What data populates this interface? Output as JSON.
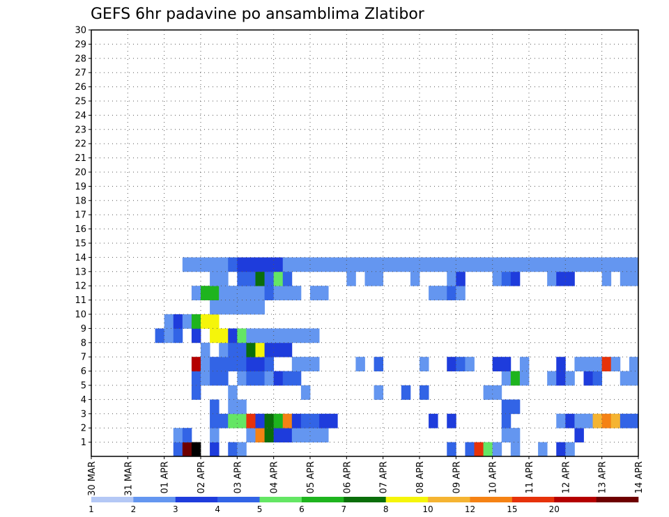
{
  "chart_data": {
    "type": "heatmap",
    "title": "GEFS 6hr padavine po ansamblima Zlatibor",
    "xlabel": "",
    "ylabel": "",
    "y_tick_labels": [
      "1",
      "2",
      "3",
      "4",
      "5",
      "6",
      "7",
      "8",
      "9",
      "10",
      "11",
      "12",
      "13",
      "14",
      "15",
      "16",
      "17",
      "18",
      "19",
      "20",
      "21",
      "22",
      "23",
      "24",
      "25",
      "26",
      "27",
      "28",
      "29",
      "30"
    ],
    "x_tick_labels": [
      "30 MAR",
      "31 MAR",
      "01 APR",
      "02 APR",
      "03 APR",
      "04 APR",
      "05 APR",
      "06 APR",
      "07 APR",
      "08 APR",
      "09 APR",
      "10 APR",
      "11 APR",
      "12 APR",
      "13 APR",
      "14 APR"
    ],
    "x_range_steps_6h": [
      0,
      60
    ],
    "y_range_members": [
      0,
      30
    ],
    "grid": "dotted",
    "colorbar": {
      "labels": [
        "1",
        "2",
        "3",
        "4",
        "5",
        "6",
        "7",
        "8",
        "10",
        "12",
        "15",
        "20"
      ],
      "colors": [
        "#b4c8f5",
        "#6496f0",
        "#1e3cdc",
        "#3264e6",
        "#64e664",
        "#1eb41e",
        "#0a6e0a",
        "#f5f50a",
        "#f5b432",
        "#f58214",
        "#e6320a",
        "#b40000",
        "#6e0000"
      ]
    },
    "cells": [
      [
        9,
        0,
        3
      ],
      [
        10,
        0,
        12
      ],
      [
        11,
        0,
        13
      ],
      [
        13,
        0,
        2
      ],
      [
        15,
        0,
        3
      ],
      [
        16,
        0,
        1
      ],
      [
        39,
        0,
        3
      ],
      [
        41,
        0,
        3
      ],
      [
        42,
        0,
        10
      ],
      [
        43,
        0,
        4
      ],
      [
        44,
        0,
        1
      ],
      [
        46,
        0,
        1
      ],
      [
        49,
        0,
        1
      ],
      [
        51,
        0,
        2
      ],
      [
        52,
        0,
        1
      ],
      [
        9,
        1,
        1
      ],
      [
        10,
        1,
        3
      ],
      [
        13,
        1,
        1
      ],
      [
        17,
        1,
        1
      ],
      [
        18,
        1,
        9
      ],
      [
        19,
        1,
        6
      ],
      [
        20,
        1,
        2
      ],
      [
        21,
        1,
        2
      ],
      [
        22,
        1,
        1
      ],
      [
        23,
        1,
        1
      ],
      [
        24,
        1,
        1
      ],
      [
        25,
        1,
        1
      ],
      [
        45,
        1,
        1
      ],
      [
        46,
        1,
        1
      ],
      [
        53,
        1,
        2
      ],
      [
        13,
        2,
        3
      ],
      [
        14,
        2,
        3
      ],
      [
        15,
        2,
        4
      ],
      [
        16,
        2,
        4
      ],
      [
        17,
        2,
        10
      ],
      [
        18,
        2,
        2
      ],
      [
        19,
        2,
        6
      ],
      [
        20,
        2,
        5
      ],
      [
        21,
        2,
        9
      ],
      [
        22,
        2,
        2
      ],
      [
        23,
        2,
        3
      ],
      [
        24,
        2,
        3
      ],
      [
        25,
        2,
        2
      ],
      [
        26,
        2,
        2
      ],
      [
        37,
        2,
        2
      ],
      [
        39,
        2,
        2
      ],
      [
        45,
        2,
        3
      ],
      [
        51,
        2,
        1
      ],
      [
        52,
        2,
        2
      ],
      [
        53,
        2,
        1
      ],
      [
        54,
        2,
        1
      ],
      [
        55,
        2,
        8
      ],
      [
        56,
        2,
        9
      ],
      [
        57,
        2,
        8
      ],
      [
        58,
        2,
        3
      ],
      [
        59,
        2,
        3
      ],
      [
        13,
        3,
        3
      ],
      [
        15,
        3,
        1
      ],
      [
        16,
        3,
        1
      ],
      [
        45,
        3,
        3
      ],
      [
        46,
        3,
        3
      ],
      [
        11,
        4,
        3
      ],
      [
        15,
        4,
        1
      ],
      [
        23,
        4,
        1
      ],
      [
        31,
        4,
        1
      ],
      [
        34,
        4,
        3
      ],
      [
        36,
        4,
        3
      ],
      [
        43,
        4,
        1
      ],
      [
        44,
        4,
        1
      ],
      [
        11,
        5,
        3
      ],
      [
        12,
        5,
        1
      ],
      [
        13,
        5,
        3
      ],
      [
        14,
        5,
        3
      ],
      [
        16,
        5,
        1
      ],
      [
        17,
        5,
        3
      ],
      [
        18,
        5,
        3
      ],
      [
        19,
        5,
        1
      ],
      [
        20,
        5,
        2
      ],
      [
        21,
        5,
        3
      ],
      [
        22,
        5,
        3
      ],
      [
        45,
        5,
        1
      ],
      [
        46,
        5,
        5
      ],
      [
        47,
        5,
        1
      ],
      [
        50,
        5,
        1
      ],
      [
        51,
        5,
        2
      ],
      [
        52,
        5,
        1
      ],
      [
        54,
        5,
        2
      ],
      [
        55,
        5,
        3
      ],
      [
        58,
        5,
        1
      ],
      [
        59,
        5,
        1
      ],
      [
        11,
        6,
        11
      ],
      [
        12,
        6,
        1
      ],
      [
        13,
        6,
        3
      ],
      [
        14,
        6,
        3
      ],
      [
        15,
        6,
        3
      ],
      [
        16,
        6,
        3
      ],
      [
        17,
        6,
        2
      ],
      [
        18,
        6,
        2
      ],
      [
        19,
        6,
        3
      ],
      [
        22,
        6,
        1
      ],
      [
        23,
        6,
        1
      ],
      [
        24,
        6,
        1
      ],
      [
        29,
        6,
        1
      ],
      [
        31,
        6,
        3
      ],
      [
        36,
        6,
        1
      ],
      [
        39,
        6,
        2
      ],
      [
        40,
        6,
        3
      ],
      [
        41,
        6,
        1
      ],
      [
        44,
        6,
        2
      ],
      [
        45,
        6,
        2
      ],
      [
        47,
        6,
        1
      ],
      [
        51,
        6,
        2
      ],
      [
        53,
        6,
        1
      ],
      [
        54,
        6,
        1
      ],
      [
        55,
        6,
        1
      ],
      [
        56,
        6,
        10
      ],
      [
        57,
        6,
        1
      ],
      [
        59,
        6,
        1
      ],
      [
        12,
        7,
        1
      ],
      [
        14,
        7,
        1
      ],
      [
        15,
        7,
        3
      ],
      [
        16,
        7,
        3
      ],
      [
        17,
        7,
        6
      ],
      [
        18,
        7,
        7
      ],
      [
        19,
        7,
        2
      ],
      [
        20,
        7,
        2
      ],
      [
        21,
        7,
        2
      ],
      [
        7,
        8,
        3
      ],
      [
        8,
        8,
        1
      ],
      [
        9,
        8,
        3
      ],
      [
        11,
        8,
        2
      ],
      [
        13,
        8,
        7
      ],
      [
        14,
        8,
        7
      ],
      [
        15,
        8,
        2
      ],
      [
        16,
        8,
        4
      ],
      [
        17,
        8,
        1
      ],
      [
        18,
        8,
        1
      ],
      [
        19,
        8,
        1
      ],
      [
        20,
        8,
        1
      ],
      [
        21,
        8,
        1
      ],
      [
        22,
        8,
        1
      ],
      [
        23,
        8,
        1
      ],
      [
        24,
        8,
        1
      ],
      [
        8,
        9,
        1
      ],
      [
        9,
        9,
        2
      ],
      [
        10,
        9,
        1
      ],
      [
        11,
        9,
        5
      ],
      [
        12,
        9,
        7
      ],
      [
        13,
        9,
        7
      ],
      [
        13,
        10,
        1
      ],
      [
        14,
        10,
        1
      ],
      [
        15,
        10,
        1
      ],
      [
        16,
        10,
        1
      ],
      [
        17,
        10,
        1
      ],
      [
        18,
        10,
        1
      ],
      [
        11,
        11,
        1
      ],
      [
        12,
        11,
        5
      ],
      [
        13,
        11,
        5
      ],
      [
        14,
        11,
        1
      ],
      [
        15,
        11,
        1
      ],
      [
        16,
        11,
        1
      ],
      [
        17,
        11,
        1
      ],
      [
        18,
        11,
        1
      ],
      [
        19,
        11,
        3
      ],
      [
        20,
        11,
        1
      ],
      [
        21,
        11,
        1
      ],
      [
        22,
        11,
        1
      ],
      [
        24,
        11,
        1
      ],
      [
        25,
        11,
        1
      ],
      [
        37,
        11,
        1
      ],
      [
        38,
        11,
        1
      ],
      [
        39,
        11,
        3
      ],
      [
        40,
        11,
        1
      ],
      [
        13,
        12,
        1
      ],
      [
        14,
        12,
        1
      ],
      [
        16,
        12,
        3
      ],
      [
        17,
        12,
        3
      ],
      [
        18,
        12,
        6
      ],
      [
        19,
        12,
        3
      ],
      [
        20,
        12,
        4
      ],
      [
        21,
        12,
        3
      ],
      [
        28,
        12,
        1
      ],
      [
        30,
        12,
        1
      ],
      [
        31,
        12,
        1
      ],
      [
        35,
        12,
        1
      ],
      [
        39,
        12,
        1
      ],
      [
        40,
        12,
        2
      ],
      [
        44,
        12,
        1
      ],
      [
        45,
        12,
        3
      ],
      [
        46,
        12,
        2
      ],
      [
        50,
        12,
        1
      ],
      [
        51,
        12,
        2
      ],
      [
        52,
        12,
        2
      ],
      [
        56,
        12,
        1
      ],
      [
        58,
        12,
        1
      ],
      [
        59,
        12,
        1
      ],
      [
        10,
        13,
        1
      ],
      [
        11,
        13,
        1
      ],
      [
        12,
        13,
        1
      ],
      [
        13,
        13,
        1
      ],
      [
        14,
        13,
        1
      ],
      [
        15,
        13,
        3
      ],
      [
        16,
        13,
        2
      ],
      [
        17,
        13,
        2
      ],
      [
        18,
        13,
        2
      ],
      [
        19,
        13,
        2
      ],
      [
        20,
        13,
        2
      ],
      [
        21,
        13,
        1
      ],
      [
        22,
        13,
        1
      ],
      [
        23,
        13,
        1
      ],
      [
        24,
        13,
        1
      ],
      [
        25,
        13,
        1
      ],
      [
        26,
        13,
        1
      ],
      [
        27,
        13,
        1
      ],
      [
        28,
        13,
        1
      ],
      [
        29,
        13,
        1
      ],
      [
        30,
        13,
        1
      ],
      [
        31,
        13,
        1
      ],
      [
        32,
        13,
        1
      ],
      [
        33,
        13,
        1
      ],
      [
        34,
        13,
        1
      ],
      [
        35,
        13,
        1
      ],
      [
        36,
        13,
        1
      ],
      [
        37,
        13,
        1
      ],
      [
        38,
        13,
        1
      ],
      [
        39,
        13,
        1
      ],
      [
        40,
        13,
        1
      ],
      [
        41,
        13,
        1
      ],
      [
        42,
        13,
        1
      ],
      [
        43,
        13,
        1
      ],
      [
        44,
        13,
        1
      ],
      [
        45,
        13,
        1
      ],
      [
        46,
        13,
        1
      ],
      [
        47,
        13,
        1
      ],
      [
        48,
        13,
        1
      ],
      [
        49,
        13,
        1
      ],
      [
        50,
        13,
        1
      ],
      [
        51,
        13,
        1
      ],
      [
        52,
        13,
        1
      ],
      [
        53,
        13,
        1
      ],
      [
        54,
        13,
        1
      ],
      [
        55,
        13,
        1
      ],
      [
        56,
        13,
        1
      ],
      [
        57,
        13,
        1
      ],
      [
        58,
        13,
        1
      ],
      [
        59,
        13,
        1
      ]
    ]
  }
}
